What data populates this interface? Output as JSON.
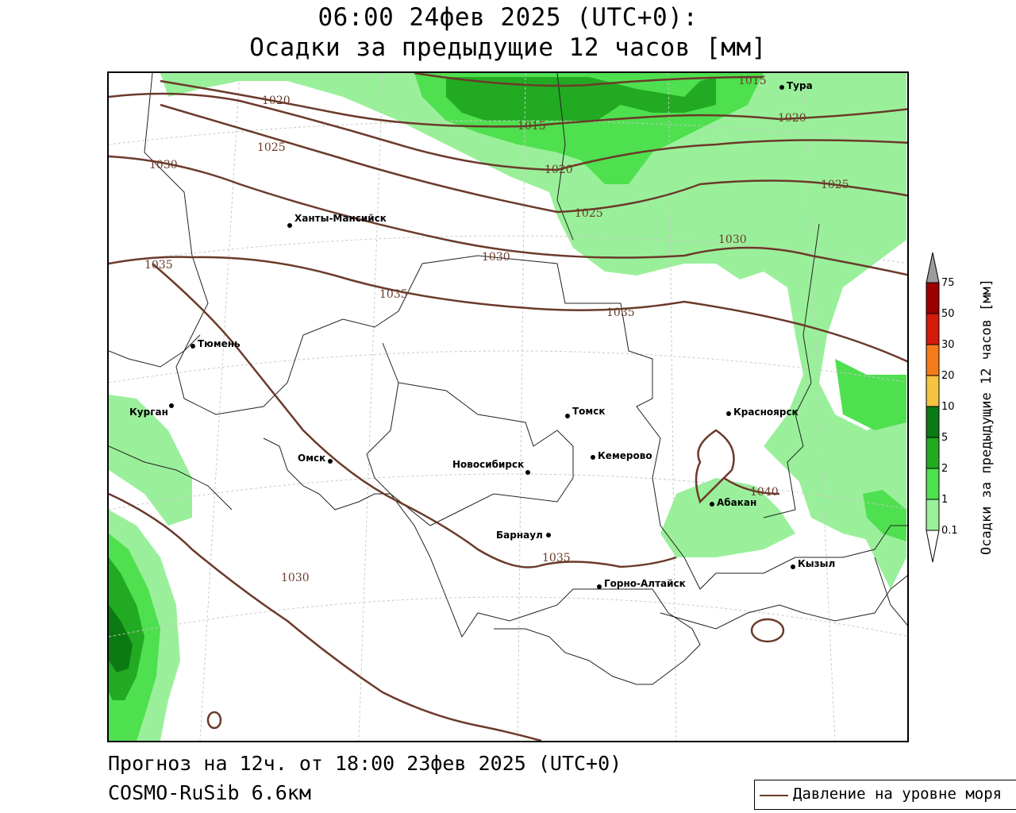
{
  "title": {
    "line1": "06:00 24фев 2025 (UTC+0):",
    "line2": "Осадки за предыдущие 12 часов [мм]"
  },
  "footer": {
    "line1": "Прогноз на 12ч. от 18:00 23фев 2025 (UTC+0)",
    "line2": "COSMO-RuSib 6.6км"
  },
  "legend": {
    "label": "Давление на уровне моря",
    "line_color": "#6b3a2a"
  },
  "colorbar": {
    "title": "Осадки за предыдущие 12 часов [мм]",
    "levels": [
      "0.1",
      "1",
      "2",
      "5",
      "10",
      "20",
      "30",
      "50",
      "75"
    ],
    "colors": [
      "#ffffff",
      "#9af09a",
      "#4fe04f",
      "#22aa22",
      "#0b7a12",
      "#f5c242",
      "#f57a1a",
      "#d41a0a",
      "#9b0000",
      "#9c9c9c"
    ]
  },
  "cities": [
    {
      "name": "Тура"
    },
    {
      "name": "Ханты-Мансийск"
    },
    {
      "name": "Тюмень"
    },
    {
      "name": "Курган"
    },
    {
      "name": "Омск"
    },
    {
      "name": "Новосибирск"
    },
    {
      "name": "Томск"
    },
    {
      "name": "Красноярск"
    },
    {
      "name": "Кемерово"
    },
    {
      "name": "Абакан"
    },
    {
      "name": "Барнаул"
    },
    {
      "name": "Горно-Алтайск"
    },
    {
      "name": "Кызыл"
    }
  ],
  "isobar_labels": [
    "1015",
    "1015",
    "1020",
    "1020",
    "1020",
    "1025",
    "1025",
    "1025",
    "1030",
    "1030",
    "1030",
    "1030",
    "1035",
    "1035",
    "1035",
    "1035",
    "1040"
  ]
}
